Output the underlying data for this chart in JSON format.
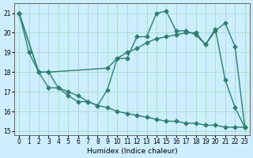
{
  "xlabel": "Humidex (Indice chaleur)",
  "bg_color": "#cceeff",
  "grid_color": "#aaddcc",
  "line_color": "#2d7f6e",
  "xlim": [
    -0.5,
    23.5
  ],
  "ylim": [
    14.8,
    21.5
  ],
  "yticks": [
    15,
    16,
    17,
    18,
    19,
    20,
    21
  ],
  "xticks": [
    0,
    1,
    2,
    3,
    4,
    5,
    6,
    7,
    8,
    9,
    10,
    11,
    12,
    13,
    14,
    15,
    16,
    17,
    18,
    19,
    20,
    21,
    22,
    23
  ],
  "line1_x": [
    0,
    1,
    2,
    3,
    4,
    5,
    6,
    7,
    8,
    9,
    10,
    11,
    12,
    13,
    14,
    15,
    16,
    17,
    18,
    19,
    20,
    21,
    22,
    23
  ],
  "line1_y": [
    21.0,
    19.0,
    18.0,
    17.2,
    17.2,
    16.8,
    16.5,
    16.5,
    16.3,
    17.1,
    18.7,
    18.7,
    19.8,
    19.8,
    21.0,
    21.1,
    20.1,
    20.1,
    19.9,
    19.4,
    20.2,
    17.6,
    16.2,
    15.2
  ],
  "line2_x": [
    0,
    2,
    3,
    9,
    10,
    11,
    12,
    13,
    14,
    15,
    16,
    17,
    18,
    19,
    20,
    21,
    22,
    23
  ],
  "line2_y": [
    21.0,
    18.0,
    18.0,
    18.2,
    18.7,
    19.0,
    19.2,
    19.5,
    19.7,
    19.8,
    19.9,
    20.0,
    20.0,
    19.4,
    20.1,
    20.5,
    19.3,
    15.2
  ],
  "line3_x": [
    0,
    2,
    3,
    4,
    5,
    6,
    7,
    8,
    9,
    10,
    11,
    12,
    13,
    14,
    15,
    16,
    17,
    18,
    19,
    20,
    21,
    22,
    23
  ],
  "line3_y": [
    21.0,
    18.0,
    18.0,
    17.2,
    17.0,
    16.8,
    16.5,
    16.3,
    16.2,
    16.0,
    15.9,
    15.8,
    15.7,
    15.6,
    15.5,
    15.5,
    15.4,
    15.4,
    15.3,
    15.3,
    15.2,
    15.2,
    15.2
  ]
}
